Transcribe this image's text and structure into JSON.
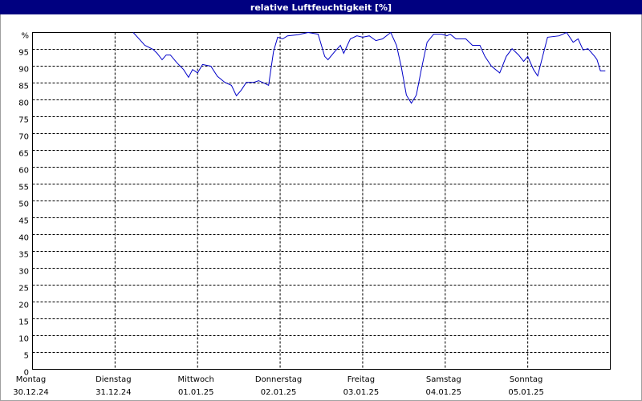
{
  "chart_data": {
    "type": "line",
    "title": "relative Luftfeuchtigkeit [%]",
    "x": [
      1.22,
      1.31,
      1.36,
      1.46,
      1.51,
      1.57,
      1.62,
      1.67,
      1.75,
      1.83,
      1.89,
      1.94,
      2.0,
      2.06,
      2.16,
      2.24,
      2.33,
      2.41,
      2.47,
      2.53,
      2.59,
      2.68,
      2.74,
      2.82,
      2.86,
      2.92,
      2.97,
      3.03,
      3.09,
      3.21,
      3.34,
      3.46,
      3.54,
      3.58,
      3.66,
      3.73,
      3.77,
      3.85,
      3.93,
      4.0,
      4.08,
      4.16,
      4.24,
      4.34,
      4.41,
      4.47,
      4.53,
      4.59,
      4.65,
      4.71,
      4.78,
      4.86,
      4.96,
      5.02,
      5.06,
      5.13,
      5.25,
      5.33,
      5.42,
      5.48,
      5.56,
      5.66,
      5.74,
      5.81,
      5.89,
      5.95,
      6.0,
      6.07,
      6.12,
      6.18,
      6.24,
      6.38,
      6.47,
      6.55,
      6.61,
      6.67,
      6.73,
      6.81,
      6.84,
      6.88,
      6.94
    ],
    "series": [
      {
        "color": "#0000c8",
        "values": [
          100,
          97.6,
          96.2,
          95,
          93.8,
          91.9,
          93.3,
          93.3,
          91,
          89,
          86.7,
          89,
          88,
          90.5,
          90,
          87,
          85.2,
          84.3,
          81.2,
          82.9,
          85.2,
          85.2,
          85.7,
          84.8,
          84.3,
          94.3,
          98.6,
          98.1,
          99,
          99.3,
          100,
          99.5,
          92.9,
          91.9,
          94.3,
          96.2,
          93.8,
          98.1,
          99,
          98.6,
          99,
          97.6,
          98.1,
          100,
          96.2,
          89.5,
          81.4,
          79,
          81.4,
          89,
          97.1,
          99.5,
          99.5,
          99,
          99.5,
          98.1,
          98.1,
          96.2,
          96.2,
          92.9,
          90,
          88,
          92.9,
          95.2,
          93.3,
          91.4,
          92.9,
          89,
          87.1,
          92.9,
          98.6,
          99,
          100,
          97.1,
          98.1,
          94.8,
          95.2,
          92.9,
          91.9,
          88.6,
          88.6
        ]
      }
    ],
    "xlim": [
      0,
      7
    ],
    "xticks": [
      {
        "value": 0,
        "label": "Montag",
        "sublabel": "30.12.24"
      },
      {
        "value": 1,
        "label": "Dienstag",
        "sublabel": "31.12.24"
      },
      {
        "value": 2,
        "label": "Mittwoch",
        "sublabel": "01.01.25"
      },
      {
        "value": 3,
        "label": "Donnerstag",
        "sublabel": "02.01.25"
      },
      {
        "value": 4,
        "label": "Freitag",
        "sublabel": "03.01.25"
      },
      {
        "value": 5,
        "label": "Samstag",
        "sublabel": "04.01.25"
      },
      {
        "value": 6,
        "label": "Sonntag",
        "sublabel": "05.01.25"
      }
    ],
    "ylim": [
      0,
      100
    ],
    "yticks": [
      0,
      5,
      10,
      15,
      20,
      25,
      30,
      35,
      40,
      45,
      50,
      55,
      60,
      65,
      70,
      75,
      80,
      85,
      90,
      95,
      {
        "value": 100,
        "label": "%"
      }
    ],
    "grid": true
  }
}
